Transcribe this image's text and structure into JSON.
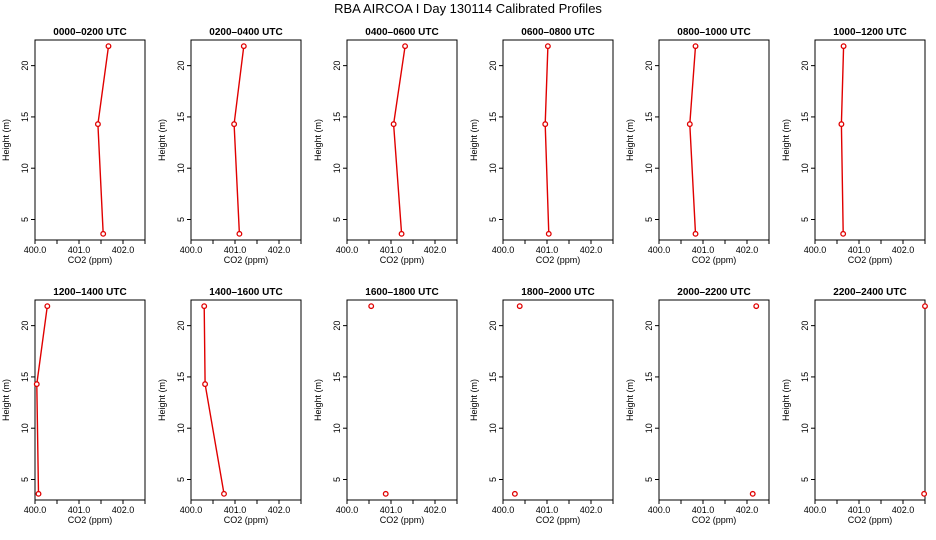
{
  "title": "RBA AIRCOA I  Day 130114  Calibrated Profiles",
  "colors": {
    "series": "#e00000",
    "axis": "#000000",
    "background": "#ffffff"
  },
  "chart_data": [
    {
      "type": "line",
      "title": "0000–0200 UTC",
      "xlabel": "CO2 (ppm)",
      "ylabel": "Height (m)",
      "xlim": [
        400.0,
        402.5
      ],
      "ylim": [
        3.0,
        22.5
      ],
      "xticks": [
        400.0,
        400.5,
        401.0,
        401.5,
        402.0,
        402.5
      ],
      "xtick_labels": [
        "400.0",
        "",
        "401.0",
        "",
        "402.0",
        ""
      ],
      "yticks": [
        5,
        10,
        15,
        20
      ],
      "ytick_labels": [
        "5",
        "10",
        "15",
        "20"
      ],
      "points": [
        {
          "x": 401.55,
          "y": 3.6
        },
        {
          "x": 401.43,
          "y": 14.3
        },
        {
          "x": 401.67,
          "y": 21.9
        }
      ]
    },
    {
      "type": "line",
      "title": "0200–0400 UTC",
      "xlabel": "CO2 (ppm)",
      "ylabel": "Height (m)",
      "xlim": [
        400.0,
        402.5
      ],
      "ylim": [
        3.0,
        22.5
      ],
      "xticks": [
        400.0,
        400.5,
        401.0,
        401.5,
        402.0,
        402.5
      ],
      "xtick_labels": [
        "400.0",
        "",
        "401.0",
        "",
        "402.0",
        ""
      ],
      "yticks": [
        5,
        10,
        15,
        20
      ],
      "ytick_labels": [
        "5",
        "10",
        "15",
        "20"
      ],
      "points": [
        {
          "x": 401.1,
          "y": 3.6
        },
        {
          "x": 400.98,
          "y": 14.3
        },
        {
          "x": 401.2,
          "y": 21.9
        }
      ]
    },
    {
      "type": "line",
      "title": "0400–0600 UTC",
      "xlabel": "CO2 (ppm)",
      "ylabel": "Height (m)",
      "xlim": [
        400.0,
        402.5
      ],
      "ylim": [
        3.0,
        22.5
      ],
      "xticks": [
        400.0,
        400.5,
        401.0,
        401.5,
        402.0,
        402.5
      ],
      "xtick_labels": [
        "400.0",
        "",
        "401.0",
        "",
        "402.0",
        ""
      ],
      "yticks": [
        5,
        10,
        15,
        20
      ],
      "ytick_labels": [
        "5",
        "10",
        "15",
        "20"
      ],
      "points": [
        {
          "x": 401.24,
          "y": 3.6
        },
        {
          "x": 401.06,
          "y": 14.3
        },
        {
          "x": 401.32,
          "y": 21.9
        }
      ]
    },
    {
      "type": "line",
      "title": "0600–0800 UTC",
      "xlabel": "CO2 (ppm)",
      "ylabel": "Height (m)",
      "xlim": [
        400.0,
        402.5
      ],
      "ylim": [
        3.0,
        22.5
      ],
      "xticks": [
        400.0,
        400.5,
        401.0,
        401.5,
        402.0,
        402.5
      ],
      "xtick_labels": [
        "400.0",
        "",
        "401.0",
        "",
        "402.0",
        ""
      ],
      "yticks": [
        5,
        10,
        15,
        20
      ],
      "ytick_labels": [
        "5",
        "10",
        "15",
        "20"
      ],
      "points": [
        {
          "x": 401.04,
          "y": 3.6
        },
        {
          "x": 400.96,
          "y": 14.3
        },
        {
          "x": 401.02,
          "y": 21.9
        }
      ]
    },
    {
      "type": "line",
      "title": "0800–1000 UTC",
      "xlabel": "CO2 (ppm)",
      "ylabel": "Height (m)",
      "xlim": [
        400.0,
        402.5
      ],
      "ylim": [
        3.0,
        22.5
      ],
      "xticks": [
        400.0,
        400.5,
        401.0,
        401.5,
        402.0,
        402.5
      ],
      "xtick_labels": [
        "400.0",
        "",
        "401.0",
        "",
        "402.0",
        ""
      ],
      "yticks": [
        5,
        10,
        15,
        20
      ],
      "ytick_labels": [
        "5",
        "10",
        "15",
        "20"
      ],
      "points": [
        {
          "x": 400.83,
          "y": 3.6
        },
        {
          "x": 400.7,
          "y": 14.3
        },
        {
          "x": 400.83,
          "y": 21.9
        }
      ]
    },
    {
      "type": "line",
      "title": "1000–1200 UTC",
      "xlabel": "CO2 (ppm)",
      "ylabel": "Height (m)",
      "xlim": [
        400.0,
        402.5
      ],
      "ylim": [
        3.0,
        22.5
      ],
      "xticks": [
        400.0,
        400.5,
        401.0,
        401.5,
        402.0,
        402.5
      ],
      "xtick_labels": [
        "400.0",
        "",
        "401.0",
        "",
        "402.0",
        ""
      ],
      "yticks": [
        5,
        10,
        15,
        20
      ],
      "ytick_labels": [
        "5",
        "10",
        "15",
        "20"
      ],
      "points": [
        {
          "x": 400.64,
          "y": 3.6
        },
        {
          "x": 400.6,
          "y": 14.3
        },
        {
          "x": 400.65,
          "y": 21.9
        }
      ]
    },
    {
      "type": "line",
      "title": "1200–1400 UTC",
      "xlabel": "CO2 (ppm)",
      "ylabel": "Height (m)",
      "xlim": [
        400.0,
        402.5
      ],
      "ylim": [
        3.0,
        22.5
      ],
      "xticks": [
        400.0,
        400.5,
        401.0,
        401.5,
        402.0,
        402.5
      ],
      "xtick_labels": [
        "400.0",
        "",
        "401.0",
        "",
        "402.0",
        ""
      ],
      "yticks": [
        5,
        10,
        15,
        20
      ],
      "ytick_labels": [
        "5",
        "10",
        "15",
        "20"
      ],
      "points": [
        {
          "x": 400.08,
          "y": 3.6
        },
        {
          "x": 400.04,
          "y": 14.3
        },
        {
          "x": 400.28,
          "y": 21.9
        }
      ]
    },
    {
      "type": "line",
      "title": "1400–1600 UTC",
      "xlabel": "CO2 (ppm)",
      "ylabel": "Height (m)",
      "xlim": [
        400.0,
        402.5
      ],
      "ylim": [
        3.0,
        22.5
      ],
      "xticks": [
        400.0,
        400.5,
        401.0,
        401.5,
        402.0,
        402.5
      ],
      "xtick_labels": [
        "400.0",
        "",
        "401.0",
        "",
        "402.0",
        ""
      ],
      "yticks": [
        5,
        10,
        15,
        20
      ],
      "ytick_labels": [
        "5",
        "10",
        "15",
        "20"
      ],
      "points": [
        {
          "x": 400.75,
          "y": 3.6
        },
        {
          "x": 400.32,
          "y": 14.3
        },
        {
          "x": 400.3,
          "y": 21.9
        }
      ]
    },
    {
      "type": "scatter",
      "title": "1600–1800 UTC",
      "xlabel": "CO2 (ppm)",
      "ylabel": "Height (m)",
      "xlim": [
        400.0,
        402.5
      ],
      "ylim": [
        3.0,
        22.5
      ],
      "xticks": [
        400.0,
        400.5,
        401.0,
        401.5,
        402.0,
        402.5
      ],
      "xtick_labels": [
        "400.0",
        "",
        "401.0",
        "",
        "402.0",
        ""
      ],
      "yticks": [
        5,
        10,
        15,
        20
      ],
      "ytick_labels": [
        "5",
        "10",
        "15",
        "20"
      ],
      "points": [
        {
          "x": 400.88,
          "y": 3.6
        },
        {
          "x": 400.55,
          "y": 21.9
        }
      ]
    },
    {
      "type": "scatter",
      "title": "1800–2000 UTC",
      "xlabel": "CO2 (ppm)",
      "ylabel": "Height (m)",
      "xlim": [
        400.0,
        402.5
      ],
      "ylim": [
        3.0,
        22.5
      ],
      "xticks": [
        400.0,
        400.5,
        401.0,
        401.5,
        402.0,
        402.5
      ],
      "xtick_labels": [
        "400.0",
        "",
        "401.0",
        "",
        "402.0",
        ""
      ],
      "yticks": [
        5,
        10,
        15,
        20
      ],
      "ytick_labels": [
        "5",
        "10",
        "15",
        "20"
      ],
      "points": [
        {
          "x": 400.27,
          "y": 3.6
        },
        {
          "x": 400.38,
          "y": 21.9
        }
      ]
    },
    {
      "type": "scatter",
      "title": "2000–2200 UTC",
      "xlabel": "CO2 (ppm)",
      "ylabel": "Height (m)",
      "xlim": [
        400.0,
        402.5
      ],
      "ylim": [
        3.0,
        22.5
      ],
      "xticks": [
        400.0,
        400.5,
        401.0,
        401.5,
        402.0,
        402.5
      ],
      "xtick_labels": [
        "400.0",
        "",
        "401.0",
        "",
        "402.0",
        ""
      ],
      "yticks": [
        5,
        10,
        15,
        20
      ],
      "ytick_labels": [
        "5",
        "10",
        "15",
        "20"
      ],
      "points": [
        {
          "x": 402.13,
          "y": 3.6
        },
        {
          "x": 402.21,
          "y": 21.9
        }
      ]
    },
    {
      "type": "scatter",
      "title": "2200–2400 UTC",
      "xlabel": "CO2 (ppm)",
      "ylabel": "Height (m)",
      "xlim": [
        400.0,
        402.5
      ],
      "ylim": [
        3.0,
        22.5
      ],
      "xticks": [
        400.0,
        400.5,
        401.0,
        401.5,
        402.0,
        402.5
      ],
      "xtick_labels": [
        "400.0",
        "",
        "401.0",
        "",
        "402.0",
        ""
      ],
      "yticks": [
        5,
        10,
        15,
        20
      ],
      "ytick_labels": [
        "5",
        "10",
        "15",
        "20"
      ],
      "points": [
        {
          "x": 402.48,
          "y": 3.6
        },
        {
          "x": 402.5,
          "y": 21.9
        }
      ]
    }
  ]
}
